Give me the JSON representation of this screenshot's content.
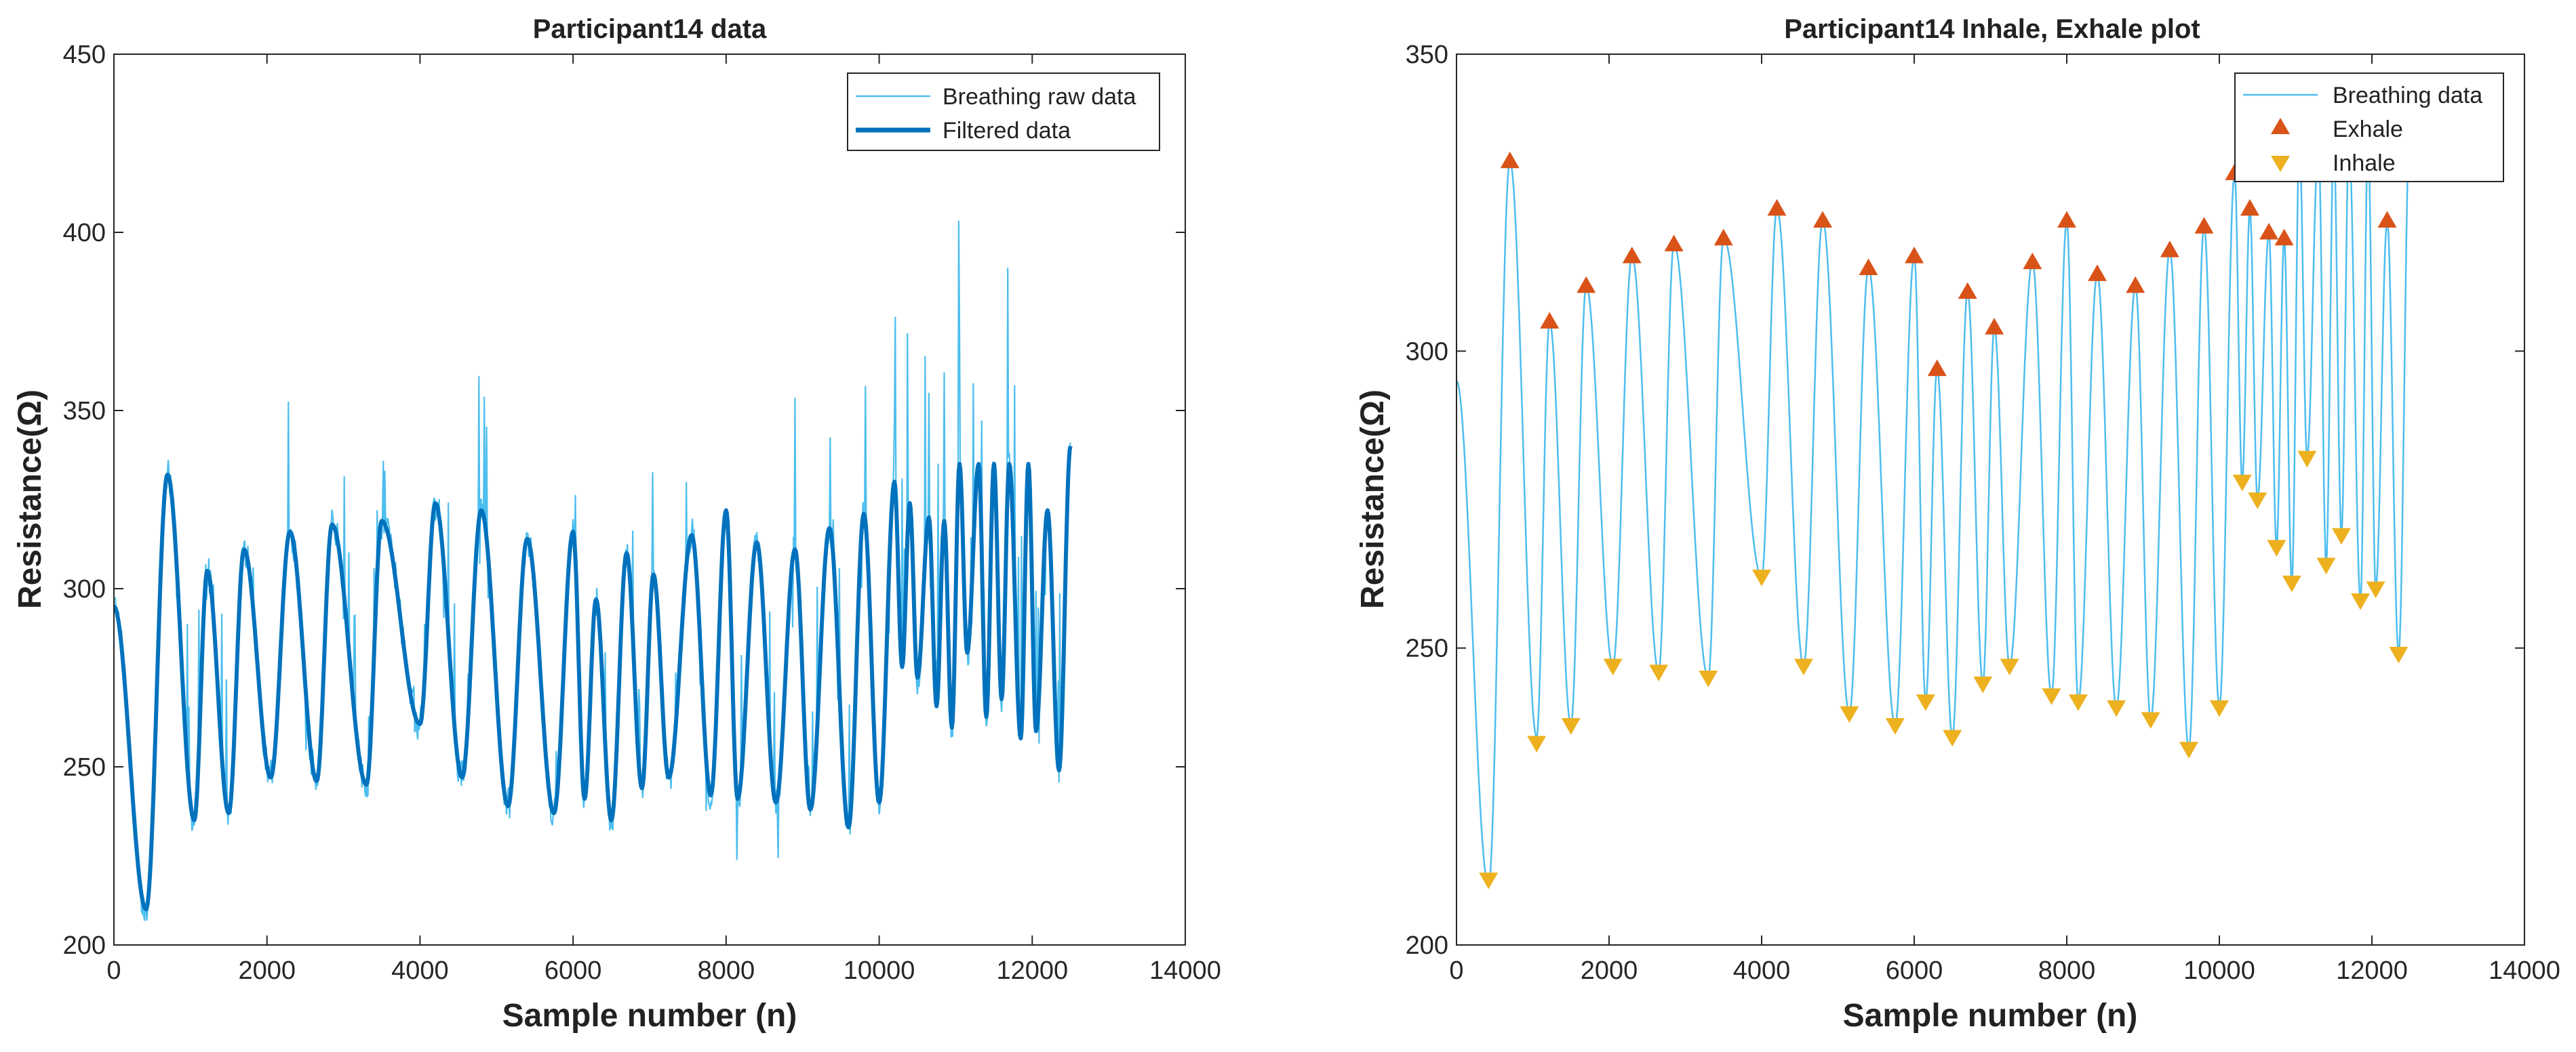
{
  "chart_data": [
    {
      "type": "line",
      "title": "Participant14 data",
      "xlabel": "Sample number (n)",
      "ylabel": "Resistance(Ω)",
      "xlim": [
        0,
        14000
      ],
      "ylim": [
        200,
        450
      ],
      "x_ticks": [
        "0",
        "2000",
        "4000",
        "6000",
        "8000",
        "10000",
        "12000",
        "14000"
      ],
      "y_ticks": [
        "200",
        "250",
        "300",
        "350",
        "400",
        "450"
      ],
      "grid": false,
      "legend_position": "top-right",
      "series": [
        {
          "name": "Breathing raw data",
          "color": "#4DBEEE",
          "style": "thin line (noisy)"
        },
        {
          "name": "Filtered data",
          "color": "#0072BD",
          "style": "thick line"
        }
      ],
      "filtered_extrema": [
        [
          0,
          295
        ],
        [
          420,
          210
        ],
        [
          700,
          332
        ],
        [
          1050,
          235
        ],
        [
          1220,
          305
        ],
        [
          1500,
          237
        ],
        [
          1700,
          311
        ],
        [
          2050,
          247
        ],
        [
          2300,
          316
        ],
        [
          2650,
          246
        ],
        [
          2850,
          318
        ],
        [
          3300,
          245
        ],
        [
          3500,
          319
        ],
        [
          4000,
          262
        ],
        [
          4200,
          324
        ],
        [
          4550,
          247
        ],
        [
          4800,
          322
        ],
        [
          5150,
          239
        ],
        [
          5400,
          314
        ],
        [
          5750,
          237
        ],
        [
          6000,
          316
        ],
        [
          6150,
          241
        ],
        [
          6300,
          297
        ],
        [
          6500,
          235
        ],
        [
          6700,
          310
        ],
        [
          6900,
          244
        ],
        [
          7050,
          304
        ],
        [
          7250,
          247
        ],
        [
          7550,
          315
        ],
        [
          7800,
          242
        ],
        [
          8000,
          322
        ],
        [
          8150,
          241
        ],
        [
          8400,
          313
        ],
        [
          8650,
          240
        ],
        [
          8900,
          311
        ],
        [
          9100,
          238
        ],
        [
          9350,
          317
        ],
        [
          9600,
          233
        ],
        [
          9800,
          321
        ],
        [
          10000,
          240
        ],
        [
          10200,
          330
        ],
        [
          10300,
          278
        ],
        [
          10400,
          324
        ],
        [
          10500,
          275
        ],
        [
          10650,
          320
        ],
        [
          10750,
          267
        ],
        [
          10850,
          319
        ],
        [
          10950,
          261
        ],
        [
          11050,
          335
        ],
        [
          11150,
          282
        ],
        [
          11300,
          335
        ],
        [
          11400,
          264
        ],
        [
          11500,
          335
        ],
        [
          11600,
          269
        ],
        [
          11700,
          335
        ],
        [
          11850,
          258
        ],
        [
          11950,
          335
        ],
        [
          12050,
          260
        ],
        [
          12200,
          322
        ],
        [
          12350,
          249
        ],
        [
          12500,
          340
        ]
      ]
    },
    {
      "type": "line",
      "title": "Participant14 Inhale, Exhale plot",
      "xlabel": "Sample number (n)",
      "ylabel": "Resistance(Ω)",
      "xlim": [
        0,
        14000
      ],
      "ylim": [
        200,
        350
      ],
      "x_ticks": [
        "0",
        "2000",
        "4000",
        "6000",
        "8000",
        "10000",
        "12000",
        "14000"
      ],
      "y_ticks": [
        "200",
        "250",
        "300",
        "350"
      ],
      "grid": false,
      "legend_position": "top-right",
      "series": [
        {
          "name": "Breathing data",
          "color": "#4DBEEE",
          "style": "line"
        },
        {
          "name": "Exhale",
          "color": "#D95319",
          "style": "upward triangle markers",
          "points": [
            [
              700,
              332
            ],
            [
              1220,
              305
            ],
            [
              1700,
              311
            ],
            [
              2300,
              316
            ],
            [
              2850,
              318
            ],
            [
              3500,
              319
            ],
            [
              4200,
              324
            ],
            [
              4800,
              322
            ],
            [
              5400,
              314
            ],
            [
              6000,
              316
            ],
            [
              6300,
              297
            ],
            [
              6700,
              310
            ],
            [
              7050,
              304
            ],
            [
              7550,
              315
            ],
            [
              8000,
              322
            ],
            [
              8400,
              313
            ],
            [
              8900,
              311
            ],
            [
              9350,
              317
            ],
            [
              9800,
              321
            ],
            [
              10200,
              330
            ],
            [
              10400,
              324
            ],
            [
              10650,
              320
            ],
            [
              10850,
              319
            ],
            [
              12200,
              322
            ]
          ]
        },
        {
          "name": "Inhale",
          "color": "#EDB120",
          "style": "downward triangle markers",
          "points": [
            [
              420,
              211
            ],
            [
              1050,
              234
            ],
            [
              1500,
              237
            ],
            [
              2050,
              247
            ],
            [
              2650,
              246
            ],
            [
              3300,
              245
            ],
            [
              4000,
              262
            ],
            [
              4550,
              247
            ],
            [
              5150,
              239
            ],
            [
              5750,
              237
            ],
            [
              6150,
              241
            ],
            [
              6500,
              235
            ],
            [
              6900,
              244
            ],
            [
              7250,
              247
            ],
            [
              7800,
              242
            ],
            [
              8150,
              241
            ],
            [
              8650,
              240
            ],
            [
              9100,
              238
            ],
            [
              9600,
              233
            ],
            [
              10000,
              240
            ],
            [
              10300,
              278
            ],
            [
              10500,
              275
            ],
            [
              10750,
              267
            ],
            [
              10950,
              261
            ],
            [
              11150,
              282
            ],
            [
              11400,
              264
            ],
            [
              11600,
              269
            ],
            [
              11850,
              258
            ],
            [
              12050,
              260
            ],
            [
              12350,
              249
            ]
          ]
        }
      ]
    }
  ]
}
